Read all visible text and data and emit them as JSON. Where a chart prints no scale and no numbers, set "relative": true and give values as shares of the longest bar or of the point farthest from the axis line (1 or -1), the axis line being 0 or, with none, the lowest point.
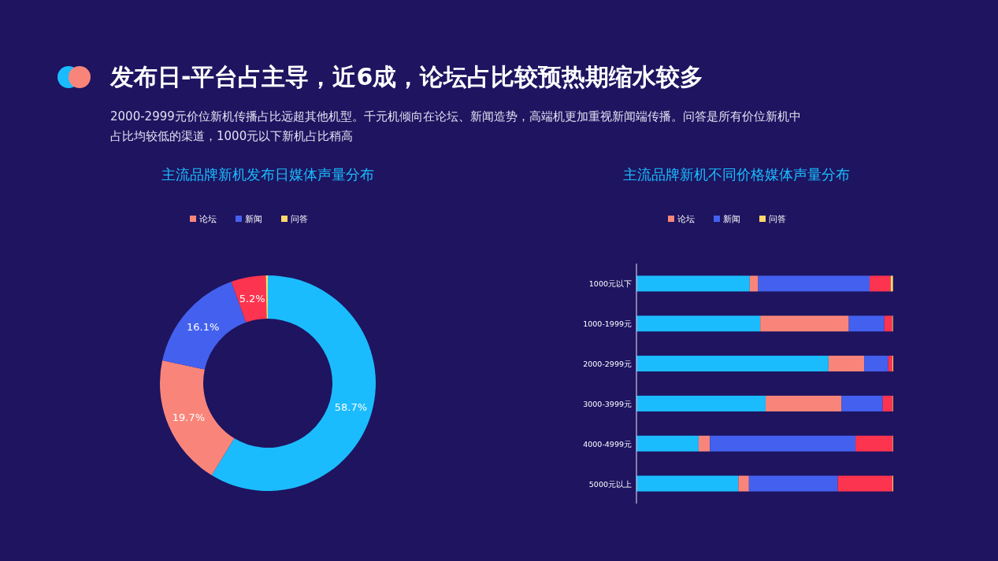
{
  "chart_data": [
    {
      "type": "donut",
      "title": "主流品牌新机发布日媒体声量分布",
      "categories": [
        null,
        "论坛",
        "新闻",
        null,
        "问答"
      ],
      "values": [
        58.7,
        19.7,
        16.1,
        5.2,
        0.3
      ],
      "colors": [
        "#1bbcfd",
        "#f9857a",
        "#4361ee",
        "#fd344f",
        "#fdd86a"
      ],
      "value_labels": [
        "58.7%",
        "19.7%",
        "16.1%",
        "5.2%",
        null
      ],
      "legend": "top",
      "annotations": [
        "发布日-平台占主导，近6成，论坛占比较预热期缩水较多",
        "2000-2999元价位新机传播占比远超其他机型。千元机倾向在论坛、新闻造势，高端机更加重视新闻端传播。问答是所有价位新机中占比均较低的渠道，1000元以下新机占比稍高"
      ]
    },
    {
      "type": "bar",
      "orientation": "horizontal",
      "stacked": true,
      "relative": true,
      "title": "主流品牌新机不同价格媒体声量分布",
      "legend": "top",
      "categories": [
        "1000元以下",
        "1000-1999元",
        "2000-2999元",
        "3000-3999元",
        "4000-4999元",
        "5000元以上"
      ],
      "series": [
        {
          "color": "#1bbcfd",
          "values": [
            0.441,
            0.482,
            0.748,
            0.503,
            0.242,
            0.397
          ]
        },
        {
          "name": "论坛",
          "color": "#f9857a",
          "values": [
            0.033,
            0.345,
            0.139,
            0.296,
            0.044,
            0.041
          ]
        },
        {
          "name": "新闻",
          "color": "#4361ee",
          "values": [
            0.434,
            0.138,
            0.093,
            0.16,
            0.567,
            0.346
          ]
        },
        {
          "color": "#fd344f",
          "values": [
            0.082,
            0.031,
            0.017,
            0.039,
            0.145,
            0.213
          ]
        },
        {
          "name": "问答",
          "color": "#fdd86a",
          "values": [
            0.009,
            0.003,
            0.003,
            0.002,
            0.002,
            0.003
          ]
        }
      ]
    }
  ]
}
